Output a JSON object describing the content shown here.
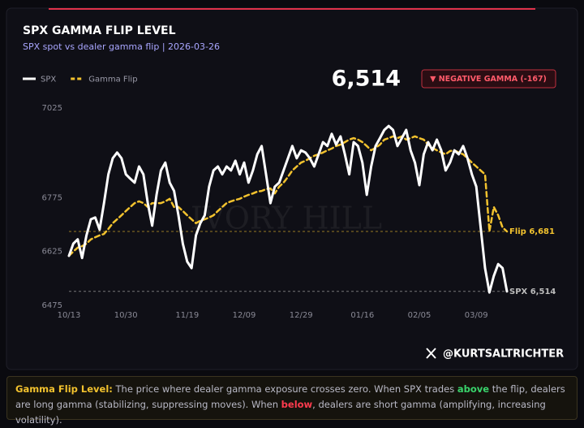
{
  "chart_data": {
    "type": "line",
    "title": "SPX GAMMA FLIP LEVEL",
    "subtitle": "SPX spot vs dealer gamma flip | 2026-03-26",
    "spot_label": "6,514",
    "badge": "▼ NEGATIVE GAMMA (-167)",
    "watermark": "IVORY HILL",
    "categories": [
      "10/13",
      null,
      null,
      null,
      null,
      null,
      null,
      null,
      null,
      null,
      null,
      null,
      null,
      "10/30",
      null,
      null,
      null,
      null,
      null,
      null,
      null,
      null,
      null,
      null,
      null,
      null,
      null,
      "11/19",
      null,
      null,
      null,
      null,
      null,
      null,
      null,
      null,
      null,
      null,
      null,
      null,
      "12/09",
      null,
      null,
      null,
      null,
      null,
      null,
      null,
      null,
      null,
      null,
      null,
      null,
      "12/29",
      null,
      null,
      null,
      null,
      null,
      null,
      null,
      null,
      null,
      null,
      null,
      null,
      null,
      "01/16",
      null,
      null,
      null,
      null,
      null,
      null,
      null,
      null,
      null,
      null,
      null,
      null,
      "02/05",
      null,
      null,
      null,
      null,
      null,
      null,
      null,
      null,
      null,
      null,
      null,
      null,
      "03/09",
      null,
      null,
      null,
      null,
      null,
      null,
      null
    ],
    "series": [
      {
        "name": "SPX",
        "color": "#ffffff",
        "dashed": false,
        "values": [
          6613,
          6647,
          6659,
          6607,
          6670,
          6715,
          6720,
          6686,
          6760,
          6840,
          6885,
          6901,
          6885,
          6840,
          6828,
          6817,
          6862,
          6840,
          6760,
          6697,
          6783,
          6851,
          6873,
          6817,
          6794,
          6726,
          6647,
          6597,
          6579,
          6670,
          6704,
          6726,
          6806,
          6851,
          6862,
          6840,
          6862,
          6851,
          6878,
          6840,
          6873,
          6817,
          6851,
          6896,
          6919,
          6840,
          6760,
          6806,
          6817,
          6851,
          6885,
          6919,
          6885,
          6907,
          6901,
          6885,
          6862,
          6896,
          6930,
          6919,
          6953,
          6923,
          6946,
          6896,
          6840,
          6930,
          6919,
          6873,
          6783,
          6862,
          6919,
          6941,
          6964,
          6975,
          6964,
          6919,
          6941,
          6964,
          6907,
          6873,
          6810,
          6896,
          6930,
          6907,
          6937,
          6907,
          6851,
          6873,
          6907,
          6896,
          6919,
          6885,
          6840,
          6806,
          6692,
          6579,
          6511,
          6557,
          6590,
          6579,
          6514
        ]
      },
      {
        "name": "Gamma Flip",
        "color": "#f2c22e",
        "dashed": true,
        "values": [
          6613,
          6625,
          6636,
          6640,
          6647,
          6659,
          6665,
          6670,
          6674,
          6688,
          6704,
          6715,
          6726,
          6738,
          6749,
          6760,
          6765,
          6760,
          6749,
          6760,
          6760,
          6760,
          6765,
          6772,
          6749,
          6749,
          6738,
          6726,
          6715,
          6704,
          6711,
          6715,
          6720,
          6726,
          6738,
          6749,
          6760,
          6765,
          6769,
          6772,
          6778,
          6783,
          6787,
          6792,
          6794,
          6799,
          6801,
          6787,
          6806,
          6817,
          6833,
          6851,
          6862,
          6873,
          6878,
          6885,
          6892,
          6896,
          6901,
          6907,
          6912,
          6919,
          6923,
          6930,
          6937,
          6941,
          6937,
          6930,
          6919,
          6907,
          6914,
          6923,
          6937,
          6941,
          6946,
          6941,
          6946,
          6937,
          6941,
          6946,
          6941,
          6937,
          6923,
          6914,
          6907,
          6901,
          6896,
          6905,
          6907,
          6901,
          6896,
          6885,
          6873,
          6862,
          6851,
          6840,
          6681,
          6749,
          6726,
          6692,
          6681
        ]
      }
    ],
    "reference_lines": [
      {
        "value": 6681,
        "label": "Flip 6,681",
        "color": "#f2c22e"
      },
      {
        "value": 6514,
        "label": "SPX 6,514",
        "color": "#bbbbbb"
      }
    ],
    "ylim": [
      6475,
      7025
    ],
    "yticks": [
      6475,
      6625,
      6775,
      7025
    ],
    "grid": false
  },
  "handle": "@KURTSALTRICHTER",
  "note": [
    "Gamma Flip Level:",
    " The price where dealer gamma exposure crosses zero. When SPX trades ",
    "above",
    " the flip, dealers are long gamma (stabilizing, suppressing moves). When ",
    "below",
    ", dealers are short gamma (amplifying, increasing volatility)."
  ]
}
